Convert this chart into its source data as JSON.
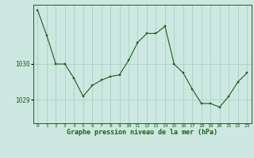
{
  "x": [
    0,
    1,
    2,
    3,
    4,
    5,
    6,
    7,
    8,
    9,
    10,
    11,
    12,
    13,
    14,
    15,
    16,
    17,
    18,
    19,
    20,
    21,
    22,
    23
  ],
  "y": [
    1031.5,
    1030.8,
    1030.0,
    1030.0,
    1029.6,
    1029.1,
    1029.4,
    1029.55,
    1029.65,
    1029.7,
    1030.1,
    1030.6,
    1030.85,
    1030.85,
    1031.05,
    1030.0,
    1029.75,
    1029.3,
    1028.9,
    1028.9,
    1028.8,
    1029.1,
    1029.5,
    1029.75
  ],
  "xlabel": "Graphe pression niveau de la mer (hPa)",
  "ytick_labels": [
    "1029",
    "1030"
  ],
  "ytick_values": [
    1029.0,
    1030.0
  ],
  "line_color": "#1e5c1e",
  "marker_color": "#1e5c1e",
  "bg_color": "#cce8e0",
  "grid_color": "#aacfc8",
  "xlabel_color": "#1e5c1e",
  "tick_color": "#1e5c1e",
  "border_color": "#1e5c1e",
  "ylim": [
    1028.35,
    1031.65
  ],
  "xlim": [
    -0.5,
    23.5
  ]
}
